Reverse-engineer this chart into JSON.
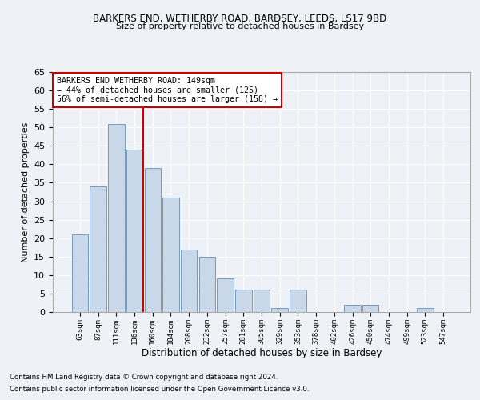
{
  "title1": "BARKERS END, WETHERBY ROAD, BARDSEY, LEEDS, LS17 9BD",
  "title2": "Size of property relative to detached houses in Bardsey",
  "xlabel": "Distribution of detached houses by size in Bardsey",
  "ylabel": "Number of detached properties",
  "footnote1": "Contains HM Land Registry data © Crown copyright and database right 2024.",
  "footnote2": "Contains public sector information licensed under the Open Government Licence v3.0.",
  "annotation_line1": "BARKERS END WETHERBY ROAD: 149sqm",
  "annotation_line2": "← 44% of detached houses are smaller (125)",
  "annotation_line3": "56% of semi-detached houses are larger (158) →",
  "bar_labels": [
    "63sqm",
    "87sqm",
    "111sqm",
    "136sqm",
    "160sqm",
    "184sqm",
    "208sqm",
    "232sqm",
    "257sqm",
    "281sqm",
    "305sqm",
    "329sqm",
    "353sqm",
    "378sqm",
    "402sqm",
    "426sqm",
    "450sqm",
    "474sqm",
    "499sqm",
    "523sqm",
    "547sqm"
  ],
  "bar_values": [
    21,
    34,
    51,
    44,
    39,
    31,
    17,
    15,
    9,
    6,
    6,
    1,
    6,
    0,
    0,
    2,
    2,
    0,
    0,
    1,
    0
  ],
  "bar_color": "#c8d8e8",
  "bar_edgecolor": "#7799bb",
  "vline_x": 3.5,
  "vline_color": "#cc0000",
  "ylim": [
    0,
    65
  ],
  "yticks": [
    0,
    5,
    10,
    15,
    20,
    25,
    30,
    35,
    40,
    45,
    50,
    55,
    60,
    65
  ],
  "background_color": "#eef2f7",
  "grid_color": "#ffffff",
  "annotation_box_color": "#ffffff",
  "annotation_box_edgecolor": "#cc0000"
}
